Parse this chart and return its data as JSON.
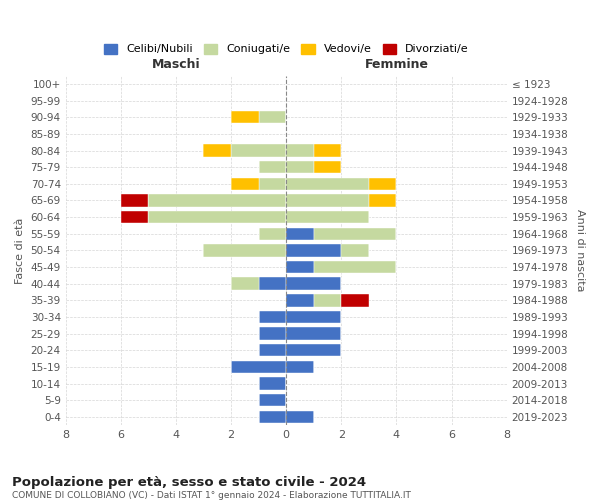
{
  "age_groups": [
    "0-4",
    "5-9",
    "10-14",
    "15-19",
    "20-24",
    "25-29",
    "30-34",
    "35-39",
    "40-44",
    "45-49",
    "50-54",
    "55-59",
    "60-64",
    "65-69",
    "70-74",
    "75-79",
    "80-84",
    "85-89",
    "90-94",
    "95-99",
    "100+"
  ],
  "birth_years": [
    "2019-2023",
    "2014-2018",
    "2009-2013",
    "2004-2008",
    "1999-2003",
    "1994-1998",
    "1989-1993",
    "1984-1988",
    "1979-1983",
    "1974-1978",
    "1969-1973",
    "1964-1968",
    "1959-1963",
    "1954-1958",
    "1949-1953",
    "1944-1948",
    "1939-1943",
    "1934-1938",
    "1929-1933",
    "1924-1928",
    "≤ 1923"
  ],
  "colors": {
    "celibi": "#4472c4",
    "coniugati": "#c5d9a0",
    "vedovi": "#ffc000",
    "divorziati": "#c00000"
  },
  "male": {
    "celibi": [
      1,
      1,
      1,
      2,
      1,
      1,
      1,
      0,
      1,
      0,
      0,
      0,
      0,
      0,
      0,
      0,
      0,
      0,
      0,
      0,
      0
    ],
    "coniugati": [
      0,
      0,
      0,
      0,
      0,
      0,
      0,
      0,
      1,
      0,
      3,
      1,
      5,
      5,
      1,
      1,
      2,
      0,
      1,
      0,
      0
    ],
    "vedovi": [
      0,
      0,
      0,
      0,
      0,
      0,
      0,
      0,
      0,
      0,
      0,
      0,
      0,
      0,
      1,
      0,
      1,
      0,
      1,
      0,
      0
    ],
    "divorziati": [
      0,
      0,
      0,
      0,
      0,
      0,
      0,
      0,
      0,
      0,
      0,
      0,
      1,
      1,
      0,
      0,
      0,
      0,
      0,
      0,
      0
    ]
  },
  "female": {
    "celibi": [
      1,
      0,
      0,
      1,
      2,
      2,
      2,
      1,
      2,
      1,
      2,
      1,
      0,
      0,
      0,
      0,
      0,
      0,
      0,
      0,
      0
    ],
    "coniugati": [
      0,
      0,
      0,
      0,
      0,
      0,
      0,
      1,
      0,
      3,
      1,
      3,
      3,
      3,
      3,
      1,
      1,
      0,
      0,
      0,
      0
    ],
    "vedovi": [
      0,
      0,
      0,
      0,
      0,
      0,
      0,
      0,
      0,
      0,
      0,
      0,
      0,
      1,
      1,
      1,
      1,
      0,
      0,
      0,
      0
    ],
    "divorziati": [
      0,
      0,
      0,
      0,
      0,
      0,
      0,
      1,
      0,
      0,
      0,
      0,
      0,
      0,
      0,
      0,
      0,
      0,
      0,
      0,
      0
    ]
  },
  "title_main": "Popolazione per età, sesso e stato civile - 2024",
  "title_sub": "COMUNE DI COLLOBIANO (VC) - Dati ISTAT 1° gennaio 2024 - Elaborazione TUTTITALIA.IT",
  "ylabel_left": "Fasce di età",
  "ylabel_right": "Anni di nascita",
  "xlabel_left": "Maschi",
  "xlabel_right": "Femmine",
  "xlim": 8,
  "legend_labels": [
    "Celibi/Nubili",
    "Coniugati/e",
    "Vedovi/e",
    "Divorziati/e"
  ],
  "bg_color": "#ffffff",
  "grid_color": "#cccccc"
}
